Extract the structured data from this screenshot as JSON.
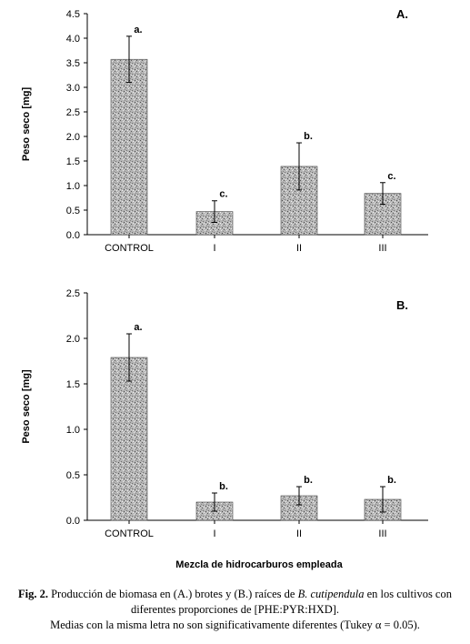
{
  "chart_data": [
    {
      "type": "bar",
      "panel_label": "A.",
      "ylabel": "Peso seco [mg]",
      "ylim": [
        0,
        4.5
      ],
      "yticks": [
        "0.0",
        "0.5",
        "1.0",
        "1.5",
        "2.0",
        "2.5",
        "3.0",
        "3.5",
        "4.0",
        "4.5"
      ],
      "categories": [
        "CONTROL",
        "I",
        "II",
        "III"
      ],
      "values": [
        3.57,
        0.47,
        1.39,
        0.84
      ],
      "errors": [
        0.47,
        0.22,
        0.48,
        0.22
      ],
      "letters": [
        "a.",
        "c.",
        "b.",
        "c."
      ]
    },
    {
      "type": "bar",
      "panel_label": "B.",
      "ylabel": "Peso seco [mg]",
      "ylim": [
        0,
        2.5
      ],
      "yticks": [
        "0.0",
        "0.5",
        "1.0",
        "1.5",
        "2.0",
        "2.5"
      ],
      "categories": [
        "CONTROL",
        "I",
        "II",
        "III"
      ],
      "values": [
        1.79,
        0.2,
        0.27,
        0.23
      ],
      "errors": [
        0.26,
        0.1,
        0.1,
        0.14
      ],
      "letters": [
        "a.",
        "b.",
        "b.",
        "b."
      ],
      "xlabel": "Mezcla de hidrocarburos empleada"
    }
  ],
  "caption": {
    "fig_label": "Fig. 2.",
    "part1": " Producción de biomasa en (A.) brotes y (B.) raíces de ",
    "species": "B. cutipendula",
    "part2": " en los cultivos con diferentes proporciones de [PHE:PYR:HXD].",
    "line2": "Medias con la misma letra no son significativamente diferentes (Tukey α = 0.05)."
  }
}
